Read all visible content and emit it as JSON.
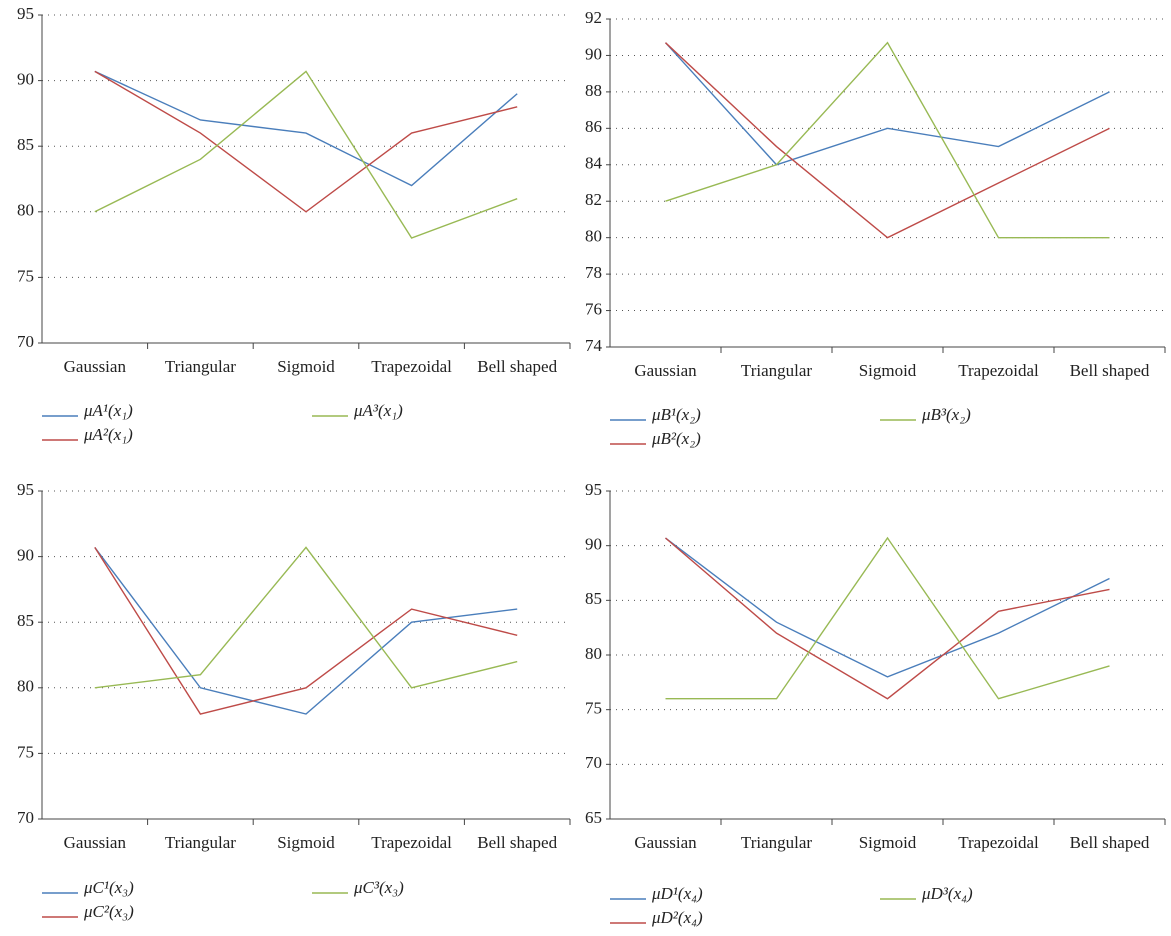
{
  "chart_data": [
    {
      "type": "line",
      "categories": [
        "Gaussian",
        "Triangular",
        "Sigmoid",
        "Trapezoidal",
        "Bell shaped"
      ],
      "ylim": [
        70,
        95
      ],
      "yticks": [
        70,
        75,
        80,
        85,
        90,
        95
      ],
      "grid": true,
      "series": [
        {
          "name": "μA¹(x₁)",
          "color": "#4a7ebb",
          "values": [
            90.7,
            87,
            86,
            82,
            89
          ]
        },
        {
          "name": "μA²(x₁)",
          "color": "#be4b48",
          "values": [
            90.7,
            86,
            80,
            86,
            88
          ]
        },
        {
          "name": "μA³(x₁)",
          "color": "#98b954",
          "values": [
            80,
            84,
            90.7,
            78,
            81
          ]
        }
      ]
    },
    {
      "type": "line",
      "categories": [
        "Gaussian",
        "Triangular",
        "Sigmoid",
        "Trapezoidal",
        "Bell shaped"
      ],
      "ylim": [
        74,
        92
      ],
      "yticks": [
        74,
        76,
        78,
        80,
        82,
        84,
        86,
        88,
        90,
        92
      ],
      "grid": true,
      "series": [
        {
          "name": "μB¹(x₂)",
          "color": "#4a7ebb",
          "values": [
            90.7,
            84,
            86,
            85,
            88
          ]
        },
        {
          "name": "μB²(x₂)",
          "color": "#be4b48",
          "values": [
            90.7,
            85,
            80,
            83,
            86
          ]
        },
        {
          "name": "μB³(x₂)",
          "color": "#98b954",
          "values": [
            82,
            84,
            90.7,
            80,
            80
          ]
        }
      ]
    },
    {
      "type": "line",
      "categories": [
        "Gaussian",
        "Triangular",
        "Sigmoid",
        "Trapezoidal",
        "Bell shaped"
      ],
      "ylim": [
        70,
        95
      ],
      "yticks": [
        70,
        75,
        80,
        85,
        90,
        95
      ],
      "grid": true,
      "series": [
        {
          "name": "μC¹(x₃)",
          "color": "#4a7ebb",
          "values": [
            90.7,
            80,
            78,
            85,
            86
          ]
        },
        {
          "name": "μC²(x₃)",
          "color": "#be4b48",
          "values": [
            90.7,
            78,
            80,
            86,
            84
          ]
        },
        {
          "name": "μC³(x₃)",
          "color": "#98b954",
          "values": [
            80,
            81,
            90.7,
            80,
            82
          ]
        }
      ]
    },
    {
      "type": "line",
      "categories": [
        "Gaussian",
        "Triangular",
        "Sigmoid",
        "Trapezoidal",
        "Bell shaped"
      ],
      "ylim": [
        65,
        95
      ],
      "yticks": [
        65,
        70,
        75,
        80,
        85,
        90,
        95
      ],
      "grid": true,
      "series": [
        {
          "name": "μD¹(x₄)",
          "color": "#4a7ebb",
          "values": [
            90.7,
            83,
            78,
            82,
            87
          ]
        },
        {
          "name": "μD²(x₄)",
          "color": "#be4b48",
          "values": [
            90.7,
            82,
            76,
            84,
            86
          ]
        },
        {
          "name": "μD³(x₄)",
          "color": "#98b954",
          "values": [
            76,
            76,
            90.7,
            76,
            79
          ]
        }
      ]
    }
  ]
}
